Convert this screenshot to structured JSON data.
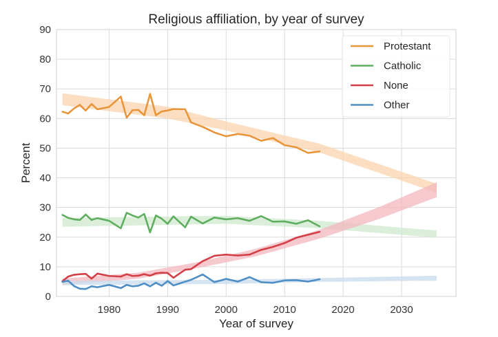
{
  "chart_data": {
    "type": "line",
    "title": "Religious affiliation, by year of survey",
    "xlabel": "Year of survey",
    "ylabel": "Percent",
    "xlim": [
      1971,
      2039.3
    ],
    "ylim": [
      0,
      90
    ],
    "xticks": [
      1980,
      1990,
      2000,
      2010,
      2020,
      2030
    ],
    "yticks": [
      0,
      10,
      20,
      30,
      40,
      50,
      60,
      70,
      80,
      90
    ],
    "grid": true,
    "legend_position": "top-right",
    "x": [
      1972,
      1973,
      1974,
      1975,
      1976,
      1977,
      1978,
      1980,
      1982,
      1983,
      1984,
      1985,
      1986,
      1987,
      1988,
      1989,
      1990,
      1991,
      1993,
      1994,
      1996,
      1998,
      2000,
      2002,
      2004,
      2006,
      2008,
      2010,
      2012,
      2014,
      2016
    ],
    "series": [
      {
        "name": "Protestant",
        "color": "#e8953a",
        "band_color": "#fbd4ad",
        "values": [
          62.3,
          61.7,
          63.4,
          64.6,
          62.7,
          64.9,
          63.1,
          63.9,
          67.4,
          60.3,
          62.8,
          62.9,
          61.1,
          68.3,
          61.1,
          62.4,
          62.7,
          63.2,
          63.1,
          58.7,
          57.2,
          55.3,
          54.0,
          54.8,
          54.2,
          52.5,
          53.4,
          51.0,
          50.3,
          48.4,
          48.9
        ],
        "band": {
          "x": [
            1972,
            1990,
            2000,
            2016,
            2036
          ],
          "lower": [
            64.5,
            60.0,
            56.0,
            48.5,
            35.0
          ],
          "upper": [
            68.5,
            64.0,
            59.0,
            51.5,
            38.0
          ]
        }
      },
      {
        "name": "Catholic",
        "color": "#5fae5f",
        "band_color": "#cde8cd",
        "values": [
          27.5,
          26.5,
          26.0,
          25.8,
          27.6,
          25.8,
          26.4,
          25.5,
          23.0,
          28.2,
          27.3,
          26.6,
          27.8,
          21.6,
          27.3,
          26.2,
          24.5,
          27.0,
          23.3,
          26.9,
          24.6,
          26.6,
          26.0,
          26.4,
          25.5,
          27.1,
          25.2,
          25.3,
          24.5,
          25.7,
          23.6
        ],
        "band": {
          "x": [
            1972,
            2000,
            2016,
            2036
          ],
          "lower": [
            23.5,
            24.5,
            23.0,
            19.8
          ],
          "upper": [
            26.5,
            27.2,
            25.5,
            22.2
          ]
        }
      },
      {
        "name": "None",
        "color": "#d33f46",
        "band_color": "#f2b7bc",
        "values": [
          5.1,
          6.7,
          7.3,
          7.5,
          7.6,
          6.0,
          7.7,
          6.9,
          6.7,
          7.5,
          6.9,
          7.0,
          7.5,
          7.0,
          7.8,
          8.0,
          7.9,
          6.3,
          9.0,
          9.2,
          11.9,
          13.7,
          14.1,
          13.8,
          14.1,
          15.7,
          16.7,
          18.0,
          19.8,
          20.8,
          21.8
        ],
        "band": {
          "x": [
            1972,
            1985,
            1995,
            2005,
            2016,
            2026,
            2036
          ],
          "lower": [
            3.8,
            6.0,
            9.5,
            13.5,
            19.5,
            26.0,
            33.5
          ],
          "upper": [
            6.0,
            8.0,
            11.5,
            16.0,
            22.5,
            30.0,
            38.5
          ]
        }
      },
      {
        "name": "Other",
        "color": "#4e8ec4",
        "band_color": "#c8dbec",
        "values": [
          4.9,
          5.3,
          3.5,
          2.6,
          2.5,
          3.4,
          3.1,
          3.9,
          2.8,
          3.9,
          3.4,
          3.6,
          4.4,
          3.4,
          4.6,
          3.6,
          5.2,
          3.7,
          5.0,
          5.6,
          7.4,
          4.8,
          5.9,
          5.0,
          6.5,
          4.8,
          4.6,
          5.4,
          5.5,
          5.0,
          5.8
        ],
        "band": {
          "x": [
            1972,
            2000,
            2016,
            2036
          ],
          "lower": [
            3.8,
            4.2,
            4.9,
            5.3
          ],
          "upper": [
            5.3,
            5.6,
            6.2,
            7.0
          ]
        }
      }
    ]
  }
}
